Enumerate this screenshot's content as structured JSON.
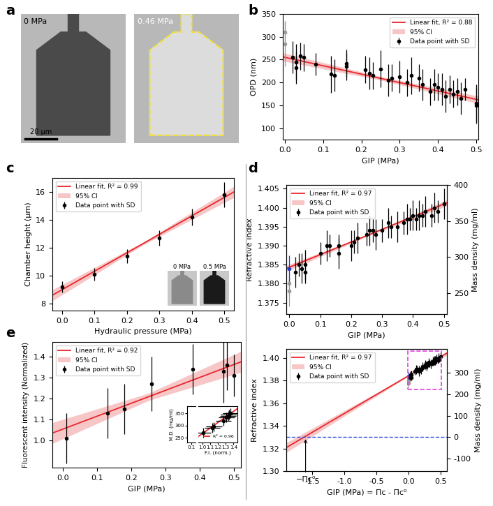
{
  "chart_data": [
    {
      "panel": "a",
      "type": "image",
      "images": [
        "0 MPa",
        "0.46 MPa"
      ],
      "scale_bar": "20 µm"
    },
    {
      "panel": "b",
      "type": "scatter",
      "xlabel": "GIP (MPa)",
      "ylabel": "OPD (nm)",
      "xlim": [
        -0.005,
        0.505
      ],
      "ylim": [
        75,
        350
      ],
      "xticks": [
        {
          "value": 0,
          "label": "0.0"
        },
        0.1,
        0.2,
        0.3,
        0.4,
        0.5
      ],
      "yticks": [
        100,
        150,
        200,
        250,
        300,
        350
      ],
      "legend": "upper right",
      "series": [
        {
          "name": "Linear fit, R² = 0.88",
          "type": "line",
          "color": "#e8262b",
          "x": [
            -0.005,
            0.505
          ],
          "values": [
            256,
            162
          ]
        },
        {
          "name": "95% CI",
          "type": "band",
          "color": "#f3a3a3",
          "x": [
            -0.005,
            0.25,
            0.505
          ],
          "lower": [
            247,
            205,
            154
          ],
          "upper": [
            265,
            213,
            170
          ]
        },
        {
          "name": "Data point with SD",
          "type": "errorbar",
          "x": [
            0.0,
            0.0,
            0.02,
            0.03,
            0.03,
            0.04,
            0.05,
            0.08,
            0.12,
            0.13,
            0.16,
            0.16,
            0.21,
            0.22,
            0.23,
            0.25,
            0.27,
            0.28,
            0.3,
            0.32,
            0.33,
            0.35,
            0.36,
            0.38,
            0.39,
            0.4,
            0.41,
            0.42,
            0.43,
            0.44,
            0.45,
            0.46,
            0.47,
            0.5,
            0.5
          ],
          "values": [
            310,
            285,
            255,
            245,
            232,
            258,
            255,
            240,
            218,
            215,
            242,
            235,
            228,
            220,
            215,
            230,
            205,
            210,
            212,
            200,
            215,
            210,
            195,
            180,
            195,
            190,
            185,
            170,
            185,
            175,
            180,
            165,
            185,
            150,
            155
          ],
          "error": [
            25,
            50,
            35,
            40,
            35,
            30,
            30,
            25,
            40,
            35,
            30,
            30,
            30,
            35,
            30,
            40,
            35,
            30,
            35,
            30,
            40,
            30,
            35,
            30,
            35,
            30,
            35,
            35,
            30,
            30,
            30,
            35,
            25,
            40,
            40
          ],
          "colors": [
            "#999999",
            "#999999",
            "#000000",
            "#000000",
            "#000000",
            "#000000",
            "#000000",
            "#000000",
            "#000000",
            "#000000",
            "#000000",
            "#000000",
            "#000000",
            "#000000",
            "#000000",
            "#000000",
            "#000000",
            "#000000",
            "#000000",
            "#000000",
            "#000000",
            "#000000",
            "#000000",
            "#000000",
            "#000000",
            "#000000",
            "#000000",
            "#000000",
            "#000000",
            "#000000",
            "#000000",
            "#000000",
            "#000000",
            "#000000",
            "#000000"
          ]
        }
      ]
    },
    {
      "panel": "c",
      "type": "scatter",
      "xlabel": "Hydraulic pressure (MPa)",
      "ylabel": "Chamber height (µm)",
      "xlim": [
        -0.03,
        0.53
      ],
      "ylim": [
        7.5,
        17
      ],
      "xticks": [
        {
          "value": 0,
          "label": "0.0"
        },
        0.1,
        0.2,
        0.3,
        0.4,
        0.5
      ],
      "yticks": [
        8,
        10,
        12,
        14,
        16
      ],
      "legend": "upper left",
      "inset_images": [
        "0 MPa",
        "0.5 MPa"
      ],
      "series": [
        {
          "name": "Linear fit, R² = 0.99",
          "type": "line",
          "color": "#e8262b",
          "x": [
            -0.03,
            0.53
          ],
          "values": [
            8.6,
            16.0
          ]
        },
        {
          "name": "95% CI",
          "type": "band",
          "color": "#f3a3a3",
          "x": [
            -0.03,
            0.25,
            0.53
          ],
          "lower": [
            8.2,
            12.2,
            15.6
          ],
          "upper": [
            9.0,
            12.4,
            16.4
          ]
        },
        {
          "name": "Data point with SD",
          "type": "errorbar",
          "color": "#000000",
          "x": [
            0.0,
            0.1,
            0.2,
            0.3,
            0.4,
            0.5
          ],
          "values": [
            9.2,
            10.1,
            11.4,
            12.7,
            14.2,
            15.8
          ],
          "error": [
            0.4,
            0.45,
            0.5,
            0.55,
            0.6,
            0.9
          ]
        }
      ]
    },
    {
      "panel": "d",
      "type": "scatter",
      "xlabel": "GIP (MPa)",
      "ylabel": "Refractive index",
      "y2label": "Mass density (mg/ml)",
      "xlim": [
        -0.01,
        0.51
      ],
      "ylim": [
        1.372,
        1.406
      ],
      "y2lim": [
        221,
        400
      ],
      "xticks": [
        {
          "value": 0,
          "label": "0.0"
        },
        0.1,
        0.2,
        0.3,
        0.4,
        0.5
      ],
      "yticks": [
        1.375,
        {
          "value": 1.38,
          "label": "1.380"
        },
        1.385,
        {
          "value": 1.39,
          "label": "1.390"
        },
        1.395,
        {
          "value": 1.4,
          "label": "1.400"
        },
        1.405
      ],
      "y2ticks": [
        250,
        300,
        350,
        400
      ],
      "legend": "upper left",
      "series": [
        {
          "name": "Linear fit, R² = 0.97",
          "type": "line",
          "color": "#e8262b",
          "x": [
            -0.01,
            0.51
          ],
          "values": [
            1.384,
            1.4013
          ]
        },
        {
          "name": "95% CI",
          "type": "band",
          "color": "#f3a3a3",
          "x": [
            -0.01,
            0.25,
            0.51
          ],
          "lower": [
            1.3832,
            1.3924,
            1.4005
          ],
          "upper": [
            1.3848,
            1.3928,
            1.4021
          ]
        },
        {
          "name": "Data point with SD",
          "type": "errorbar",
          "x": [
            0.0,
            0.0,
            0.0,
            0.02,
            0.03,
            0.04,
            0.05,
            0.05,
            0.1,
            0.12,
            0.13,
            0.16,
            0.16,
            0.2,
            0.21,
            0.22,
            0.25,
            0.26,
            0.27,
            0.28,
            0.3,
            0.32,
            0.33,
            0.35,
            0.37,
            0.38,
            0.39,
            0.4,
            0.41,
            0.42,
            0.43,
            0.44,
            0.46,
            0.47,
            0.48,
            0.5
          ],
          "values": [
            1.378,
            1.38,
            1.384,
            1.383,
            1.385,
            1.384,
            1.383,
            1.385,
            1.388,
            1.39,
            1.39,
            1.388,
            1.39,
            1.39,
            1.391,
            1.392,
            1.393,
            1.394,
            1.394,
            1.393,
            1.394,
            1.396,
            1.395,
            1.395,
            1.396,
            1.397,
            1.397,
            1.398,
            1.397,
            1.398,
            1.398,
            1.399,
            1.398,
            1.4,
            1.399,
            1.401
          ],
          "error": [
            0.004,
            0.003,
            0.0035,
            0.004,
            0.003,
            0.004,
            0.003,
            0.004,
            0.003,
            0.004,
            0.003,
            0.004,
            0.003,
            0.004,
            0.003,
            0.004,
            0.003,
            0.004,
            0.003,
            0.004,
            0.003,
            0.004,
            0.003,
            0.004,
            0.003,
            0.004,
            0.003,
            0.004,
            0.003,
            0.004,
            0.003,
            0.004,
            0.003,
            0.004,
            0.003,
            0.004
          ],
          "colors": [
            "#999999",
            "#999999",
            "#1f3fbf",
            "#000000",
            "#000000",
            "#000000",
            "#000000",
            "#000000",
            "#000000",
            "#000000",
            "#000000",
            "#000000",
            "#000000",
            "#000000",
            "#000000",
            "#000000",
            "#000000",
            "#000000",
            "#000000",
            "#000000",
            "#000000",
            "#000000",
            "#000000",
            "#000000",
            "#000000",
            "#000000",
            "#000000",
            "#000000",
            "#000000",
            "#000000",
            "#000000",
            "#000000",
            "#000000",
            "#000000",
            "#000000",
            "#000000"
          ]
        }
      ]
    },
    {
      "panel": "e",
      "type": "scatter",
      "xlabel": "GIP (MPa)",
      "ylabel": "Fluorescent intensity (Normalized)",
      "xlim": [
        -0.03,
        0.52
      ],
      "ylim": [
        0.87,
        1.47
      ],
      "xticks": [
        {
          "value": 0,
          "label": "0.0"
        },
        0.1,
        0.2,
        0.3,
        0.4,
        0.5
      ],
      "yticks": [
        {
          "value": 1,
          "label": "1.0"
        },
        1.1,
        1.2,
        1.3,
        1.4
      ],
      "legend": "upper left",
      "series": [
        {
          "name": "Linear fit, R² = 0.92",
          "type": "line",
          "color": "#e8262b",
          "x": [
            -0.03,
            0.52
          ],
          "values": [
            1.035,
            1.375
          ]
        },
        {
          "name": "95% CI",
          "type": "band",
          "color": "#f3a3a3",
          "x": [
            -0.03,
            0.25,
            0.52
          ],
          "lower": [
            0.985,
            1.19,
            1.325
          ],
          "upper": [
            1.085,
            1.225,
            1.425
          ]
        },
        {
          "name": "Data point with SD",
          "type": "errorbar",
          "color": "#000000",
          "x": [
            0.01,
            0.13,
            0.18,
            0.26,
            0.38,
            0.47,
            0.48,
            0.5
          ],
          "values": [
            1.01,
            1.13,
            1.15,
            1.27,
            1.34,
            1.33,
            1.36,
            1.31
          ],
          "error": [
            0.12,
            0.12,
            0.12,
            0.13,
            0.12,
            0.15,
            0.12,
            0.1
          ]
        }
      ],
      "inset": {
        "xlabel": "F.I. (norm.)",
        "ylabel": "M.D. (mg/ml)",
        "xlim": [
          0.05,
          1.45
        ],
        "x_break": [
          0.15,
          0.95
        ],
        "ylim": [
          230,
          380
        ],
        "xticks": [
          0.1,
          {
            "value": 1,
            "label": "1.0"
          },
          1.1,
          1.2,
          1.3,
          1.4
        ],
        "yticks": [
          250,
          300,
          350
        ],
        "legend": "lower right",
        "series": [
          {
            "name": "R² = 0.96",
            "type": "line",
            "color": "#e8262b",
            "x": [
              0.95,
              1.45
            ],
            "values": [
              255,
              370
            ]
          },
          {
            "type": "errorbar",
            "color": "#000000",
            "x": [
              1.01,
              1.13,
              1.15,
              1.27,
              1.34,
              1.33,
              1.36,
              1.31
            ],
            "values": [
              270,
              290,
              295,
              320,
              345,
              340,
              350,
              335
            ],
            "error": [
              20,
              20,
              20,
              20,
              20,
              20,
              20,
              20
            ],
            "xerror": [
              0.1,
              0.1,
              0.1,
              0.1,
              0.1,
              0.1,
              0.1,
              0.1
            ]
          }
        ]
      }
    },
    {
      "type": "scatter",
      "xlabel": "GIP (MPa) = Πc - Πc⁰",
      "ylabel": "Refractive index",
      "y2label": "Mass density (mg/ml)",
      "xlim": [
        -1.9,
        0.6
      ],
      "ylim": [
        1.3,
        1.408
      ],
      "y2lim": [
        -158,
        410
      ],
      "xticks": [
        -1.5,
        {
          "value": -1,
          "label": "-1.0"
        },
        -0.5,
        {
          "value": 0,
          "label": "0.0"
        },
        0.5
      ],
      "yticks": [
        {
          "value": 1.3,
          "label": "1.30"
        },
        1.32,
        1.34,
        1.36,
        1.38,
        {
          "value": 1.4,
          "label": "1.40"
        }
      ],
      "y2ticks": [
        -100,
        0,
        100,
        200,
        300
      ],
      "legend": "upper left",
      "annotation": {
        "text": "−Πc⁰",
        "x": -1.6,
        "y": 1.33
      },
      "series": [
        {
          "name": "Linear fit, R² = 0.97",
          "type": "line",
          "color": "#e8262b",
          "x": [
            -1.9,
            0.6
          ],
          "values": [
            1.3208,
            1.4043
          ]
        },
        {
          "name": "95% CI",
          "type": "band",
          "color": "#f3a3a3",
          "x": [
            -1.9,
            0.0,
            0.6
          ],
          "lower": [
            1.3165,
            1.3838,
            1.4025
          ],
          "upper": [
            1.3251,
            1.3848,
            1.4061
          ]
        },
        {
          "name": "Data point with SD",
          "type": "errorbar",
          "x": [
            0.0,
            0.0,
            0.0,
            0.02,
            0.03,
            0.04,
            0.05,
            0.05,
            0.1,
            0.12,
            0.13,
            0.16,
            0.16,
            0.2,
            0.21,
            0.22,
            0.25,
            0.26,
            0.27,
            0.28,
            0.3,
            0.32,
            0.33,
            0.35,
            0.37,
            0.38,
            0.39,
            0.4,
            0.41,
            0.42,
            0.43,
            0.44,
            0.46,
            0.47,
            0.48,
            0.5
          ],
          "values": [
            1.378,
            1.38,
            1.384,
            1.383,
            1.385,
            1.384,
            1.383,
            1.385,
            1.388,
            1.39,
            1.39,
            1.388,
            1.39,
            1.39,
            1.391,
            1.392,
            1.393,
            1.394,
            1.394,
            1.393,
            1.394,
            1.396,
            1.395,
            1.395,
            1.396,
            1.397,
            1.397,
            1.398,
            1.397,
            1.398,
            1.398,
            1.399,
            1.398,
            1.4,
            1.399,
            1.401
          ],
          "error": [
            0.004,
            0.003,
            0.0035,
            0.004,
            0.003,
            0.004,
            0.003,
            0.004,
            0.003,
            0.004,
            0.003,
            0.004,
            0.003,
            0.004,
            0.003,
            0.004,
            0.003,
            0.004,
            0.003,
            0.004,
            0.003,
            0.004,
            0.003,
            0.004,
            0.003,
            0.004,
            0.003,
            0.004,
            0.003,
            0.004,
            0.003,
            0.004,
            0.003,
            0.004,
            0.003,
            0.004
          ],
          "colors": [
            "#999999",
            "#999999",
            "#1f3fbf",
            "#000000",
            "#000000",
            "#000000",
            "#000000",
            "#000000",
            "#000000",
            "#000000",
            "#000000",
            "#000000",
            "#000000",
            "#000000",
            "#000000",
            "#000000",
            "#000000",
            "#000000",
            "#000000",
            "#000000",
            "#000000",
            "#000000",
            "#000000",
            "#000000",
            "#000000",
            "#000000",
            "#000000",
            "#000000",
            "#000000",
            "#000000",
            "#000000",
            "#000000",
            "#000000",
            "#000000",
            "#000000",
            "#000000"
          ]
        }
      ]
    }
  ]
}
